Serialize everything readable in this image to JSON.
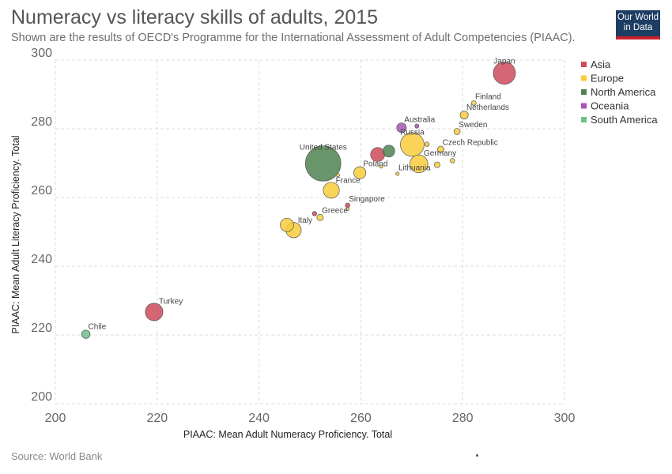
{
  "header": {
    "title": "Numeracy vs literacy skills of adults, 2015",
    "subtitle": "Shown are the results of OECD's Programme for the International Assessment of Adult Competencies (PIAAC).",
    "logo": "Our World in Data"
  },
  "footer": {
    "source": "Source: World Bank"
  },
  "colors": {
    "Asia": "#cf4a5a",
    "Europe": "#f8cc3c",
    "North America": "#4f8250",
    "Oceania": "#a855b5",
    "South America": "#6dc08b",
    "grid": "#dddddd"
  },
  "chart_data": {
    "type": "scatter",
    "title": "Numeracy vs literacy skills of adults, 2015",
    "xlabel": "PIAAC: Mean Adult Numeracy Proficiency. Total",
    "ylabel": "PIAAC: Mean Adult Literacy Proficiency. Total",
    "xlim": [
      200,
      300
    ],
    "ylim": [
      200,
      300
    ],
    "xticks": [
      200,
      220,
      240,
      260,
      280,
      300
    ],
    "yticks": [
      200,
      220,
      240,
      260,
      280,
      300
    ],
    "grid": true,
    "legend_position": "right",
    "legend": [
      "Asia",
      "Europe",
      "North America",
      "Oceania",
      "South America"
    ],
    "points": [
      {
        "label": "Japan",
        "region": "Asia",
        "x": 288.2,
        "y": 296.2,
        "size": 127
      },
      {
        "label": "Finland",
        "region": "Europe",
        "x": 282.2,
        "y": 287.5,
        "size": 5.5
      },
      {
        "label": "Netherlands",
        "region": "Europe",
        "x": 280.3,
        "y": 284.0,
        "size": 17
      },
      {
        "label": "Sweden",
        "region": "Europe",
        "x": 278.9,
        "y": 279.2,
        "size": 9.9
      },
      {
        "label": "Czech Republic",
        "region": "Europe",
        "x": 275.7,
        "y": 274.0,
        "size": 10.6
      },
      {
        "label": "",
        "region": "Europe",
        "x": 278.0,
        "y": 270.7,
        "size": 5.3
      },
      {
        "label": "",
        "region": "Europe",
        "x": 275.0,
        "y": 269.5,
        "size": 8.4
      },
      {
        "label": "",
        "region": "Europe",
        "x": 273.0,
        "y": 275.5,
        "size": 5.0
      },
      {
        "label": "Australia",
        "region": "Oceania",
        "x": 268.0,
        "y": 280.3,
        "size": 24
      },
      {
        "label": "",
        "region": "Oceania",
        "x": 271.0,
        "y": 280.8,
        "size": 4.3
      },
      {
        "label": "Russia",
        "region": "Europe",
        "x": 270.1,
        "y": 275.4,
        "size": 144
      },
      {
        "label": "",
        "region": "North America",
        "x": 265.5,
        "y": 273.5,
        "size": 36
      },
      {
        "label": "United States",
        "region": "North America",
        "x": 252.6,
        "y": 269.9,
        "size": 321
      },
      {
        "label": "Germany",
        "region": "Europe",
        "x": 271.4,
        "y": 269.8,
        "size": 82
      },
      {
        "label": "",
        "region": "Asia",
        "x": 263.3,
        "y": 272.5,
        "size": 51
      },
      {
        "label": "Poland",
        "region": "Europe",
        "x": 259.8,
        "y": 267.2,
        "size": 38
      },
      {
        "label": "",
        "region": "Europe",
        "x": 255.5,
        "y": 266.5,
        "size": 3.0
      },
      {
        "label": "",
        "region": "Europe",
        "x": 264.0,
        "y": 269.0,
        "size": 2.1
      },
      {
        "label": "Lithuania",
        "region": "Europe",
        "x": 267.2,
        "y": 266.9,
        "size": 2.9
      },
      {
        "label": "France",
        "region": "Europe",
        "x": 254.2,
        "y": 262.1,
        "size": 66
      },
      {
        "label": "Singapore",
        "region": "Asia",
        "x": 257.4,
        "y": 257.7,
        "size": 5.5
      },
      {
        "label": "",
        "region": "Europe",
        "x": 257.4,
        "y": 256.6,
        "size": 1.5
      },
      {
        "label": "Greece",
        "region": "Europe",
        "x": 252.0,
        "y": 254.2,
        "size": 10.8
      },
      {
        "label": "",
        "region": "Asia",
        "x": 250.9,
        "y": 255.3,
        "size": 5.0
      },
      {
        "label": "Italy",
        "region": "Europe",
        "x": 246.8,
        "y": 250.5,
        "size": 60
      },
      {
        "label": "",
        "region": "Europe",
        "x": 245.5,
        "y": 252.0,
        "size": 46
      },
      {
        "label": "Turkey",
        "region": "Asia",
        "x": 219.4,
        "y": 226.7,
        "size": 79
      },
      {
        "label": "Chile",
        "region": "South America",
        "x": 206.0,
        "y": 220.2,
        "size": 18
      }
    ]
  }
}
